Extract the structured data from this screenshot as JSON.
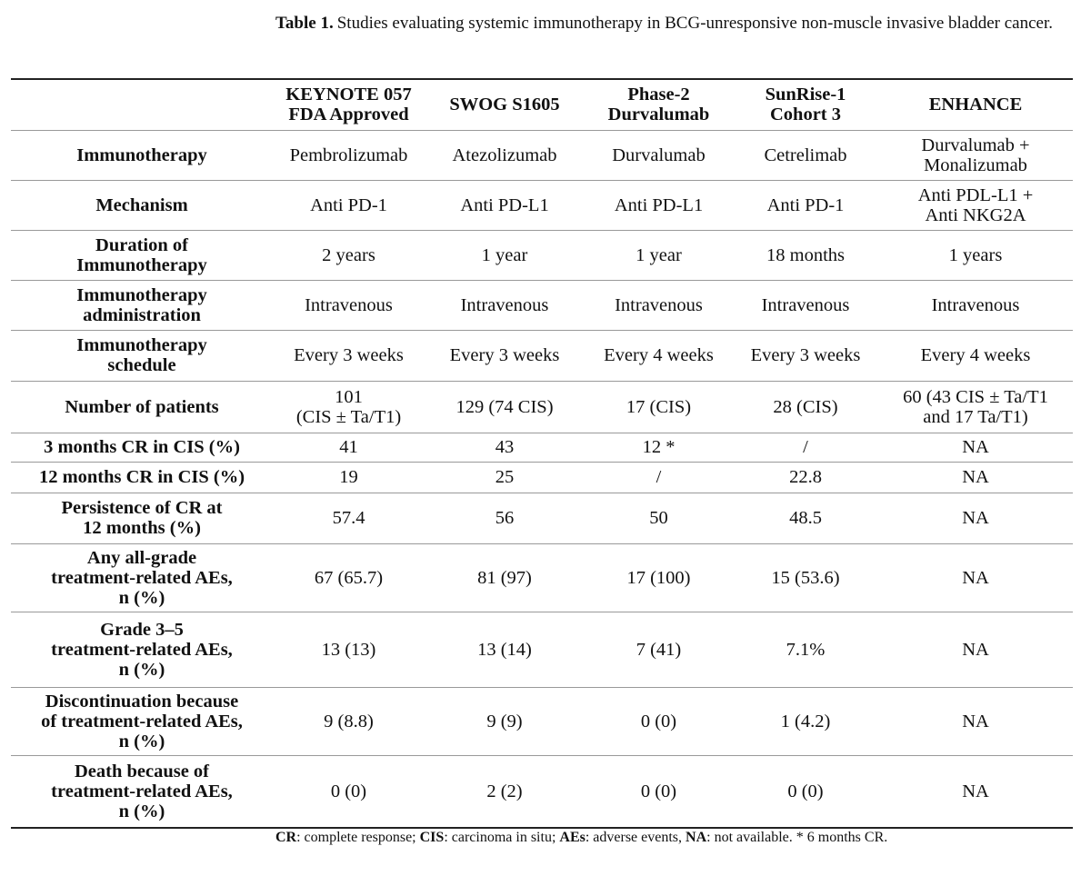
{
  "caption": {
    "label": "Table 1.",
    "text": "Studies evaluating systemic immunotherapy in BCG-unresponsive non-muscle invasive bladder cancer."
  },
  "table": {
    "header": [
      [
        "KEYNOTE 057",
        "FDA Approved"
      ],
      [
        "SWOG S1605"
      ],
      [
        "Phase-2",
        "Durvalumab"
      ],
      [
        "SunRise-1",
        "Cohort 3"
      ],
      [
        "ENHANCE"
      ]
    ],
    "rows": [
      {
        "label": [
          "Immunotherapy"
        ],
        "cells": [
          [
            "Pembrolizumab"
          ],
          [
            "Atezolizumab"
          ],
          [
            "Durvalumab"
          ],
          [
            "Cetrelimab"
          ],
          [
            "Durvalumab +",
            "Monalizumab"
          ]
        ]
      },
      {
        "label": [
          "Mechanism"
        ],
        "cells": [
          [
            "Anti PD-1"
          ],
          [
            "Anti PD-L1"
          ],
          [
            "Anti PD-L1"
          ],
          [
            "Anti PD-1"
          ],
          [
            "Anti PDL-L1 +",
            "Anti NKG2A"
          ]
        ]
      },
      {
        "label": [
          "Duration of",
          "Immunotherapy"
        ],
        "cells": [
          [
            "2 years"
          ],
          [
            "1 year"
          ],
          [
            "1 year"
          ],
          [
            "18 months"
          ],
          [
            "1 years"
          ]
        ]
      },
      {
        "label": [
          "Immunotherapy",
          "administration"
        ],
        "cells": [
          [
            "Intravenous"
          ],
          [
            "Intravenous"
          ],
          [
            "Intravenous"
          ],
          [
            "Intravenous"
          ],
          [
            "Intravenous"
          ]
        ]
      },
      {
        "label": [
          "Immunotherapy",
          "schedule"
        ],
        "cells": [
          [
            "Every 3 weeks"
          ],
          [
            "Every 3 weeks"
          ],
          [
            "Every 4 weeks"
          ],
          [
            "Every 3 weeks"
          ],
          [
            "Every 4 weeks"
          ]
        ]
      },
      {
        "label": [
          "Number of patients"
        ],
        "cells": [
          [
            "101",
            "(CIS ± Ta/T1)"
          ],
          [
            "129 (74 CIS)"
          ],
          [
            "17 (CIS)"
          ],
          [
            "28 (CIS)"
          ],
          [
            "60 (43 CIS ± Ta/T1",
            "and 17 Ta/T1)"
          ]
        ]
      },
      {
        "label": [
          "3 months CR in CIS (%)"
        ],
        "cells": [
          [
            "41"
          ],
          [
            "43"
          ],
          [
            "12 *"
          ],
          [
            "/"
          ],
          [
            "NA"
          ]
        ]
      },
      {
        "label": [
          "12 months CR in CIS (%)"
        ],
        "cells": [
          [
            "19"
          ],
          [
            "25"
          ],
          [
            "/"
          ],
          [
            "22.8"
          ],
          [
            "NA"
          ]
        ]
      },
      {
        "label": [
          "Persistence of CR at",
          "12 months (%)"
        ],
        "cells": [
          [
            "57.4"
          ],
          [
            "56"
          ],
          [
            "50"
          ],
          [
            "48.5"
          ],
          [
            "NA"
          ]
        ]
      },
      {
        "label": [
          "Any all-grade",
          "treatment-related AEs,",
          "n (%)"
        ],
        "cells": [
          [
            "67 (65.7)"
          ],
          [
            "81 (97)"
          ],
          [
            "17 (100)"
          ],
          [
            "15 (53.6)"
          ],
          [
            "NA"
          ]
        ]
      },
      {
        "label": [
          "Grade 3–5",
          "treatment-related AEs,",
          "n (%)"
        ],
        "cells": [
          [
            "13 (13)"
          ],
          [
            "13 (14)"
          ],
          [
            "7 (41)"
          ],
          [
            "7.1%"
          ],
          [
            "NA"
          ]
        ]
      },
      {
        "label": [
          "Discontinuation because",
          "of treatment-related AEs,",
          "n (%)"
        ],
        "cells": [
          [
            "9 (8.8)"
          ],
          [
            "9 (9)"
          ],
          [
            "0 (0)"
          ],
          [
            "1 (4.2)"
          ],
          [
            "NA"
          ]
        ]
      },
      {
        "label": [
          "Death because of",
          "treatment-related AEs,",
          "n (%)"
        ],
        "cells": [
          [
            "0 (0)"
          ],
          [
            "2 (2)"
          ],
          [
            "0 (0)"
          ],
          [
            "0 (0)"
          ],
          [
            "NA"
          ]
        ]
      }
    ]
  },
  "footnote": {
    "items": [
      {
        "term": "CR",
        "text": ": complete response;"
      },
      {
        "term": "CIS",
        "text": ": carcinoma in situ;"
      },
      {
        "term": "AEs",
        "text": ": adverse events,"
      },
      {
        "term": "NA",
        "text": ": not available."
      }
    ],
    "note": "* 6 months CR."
  }
}
